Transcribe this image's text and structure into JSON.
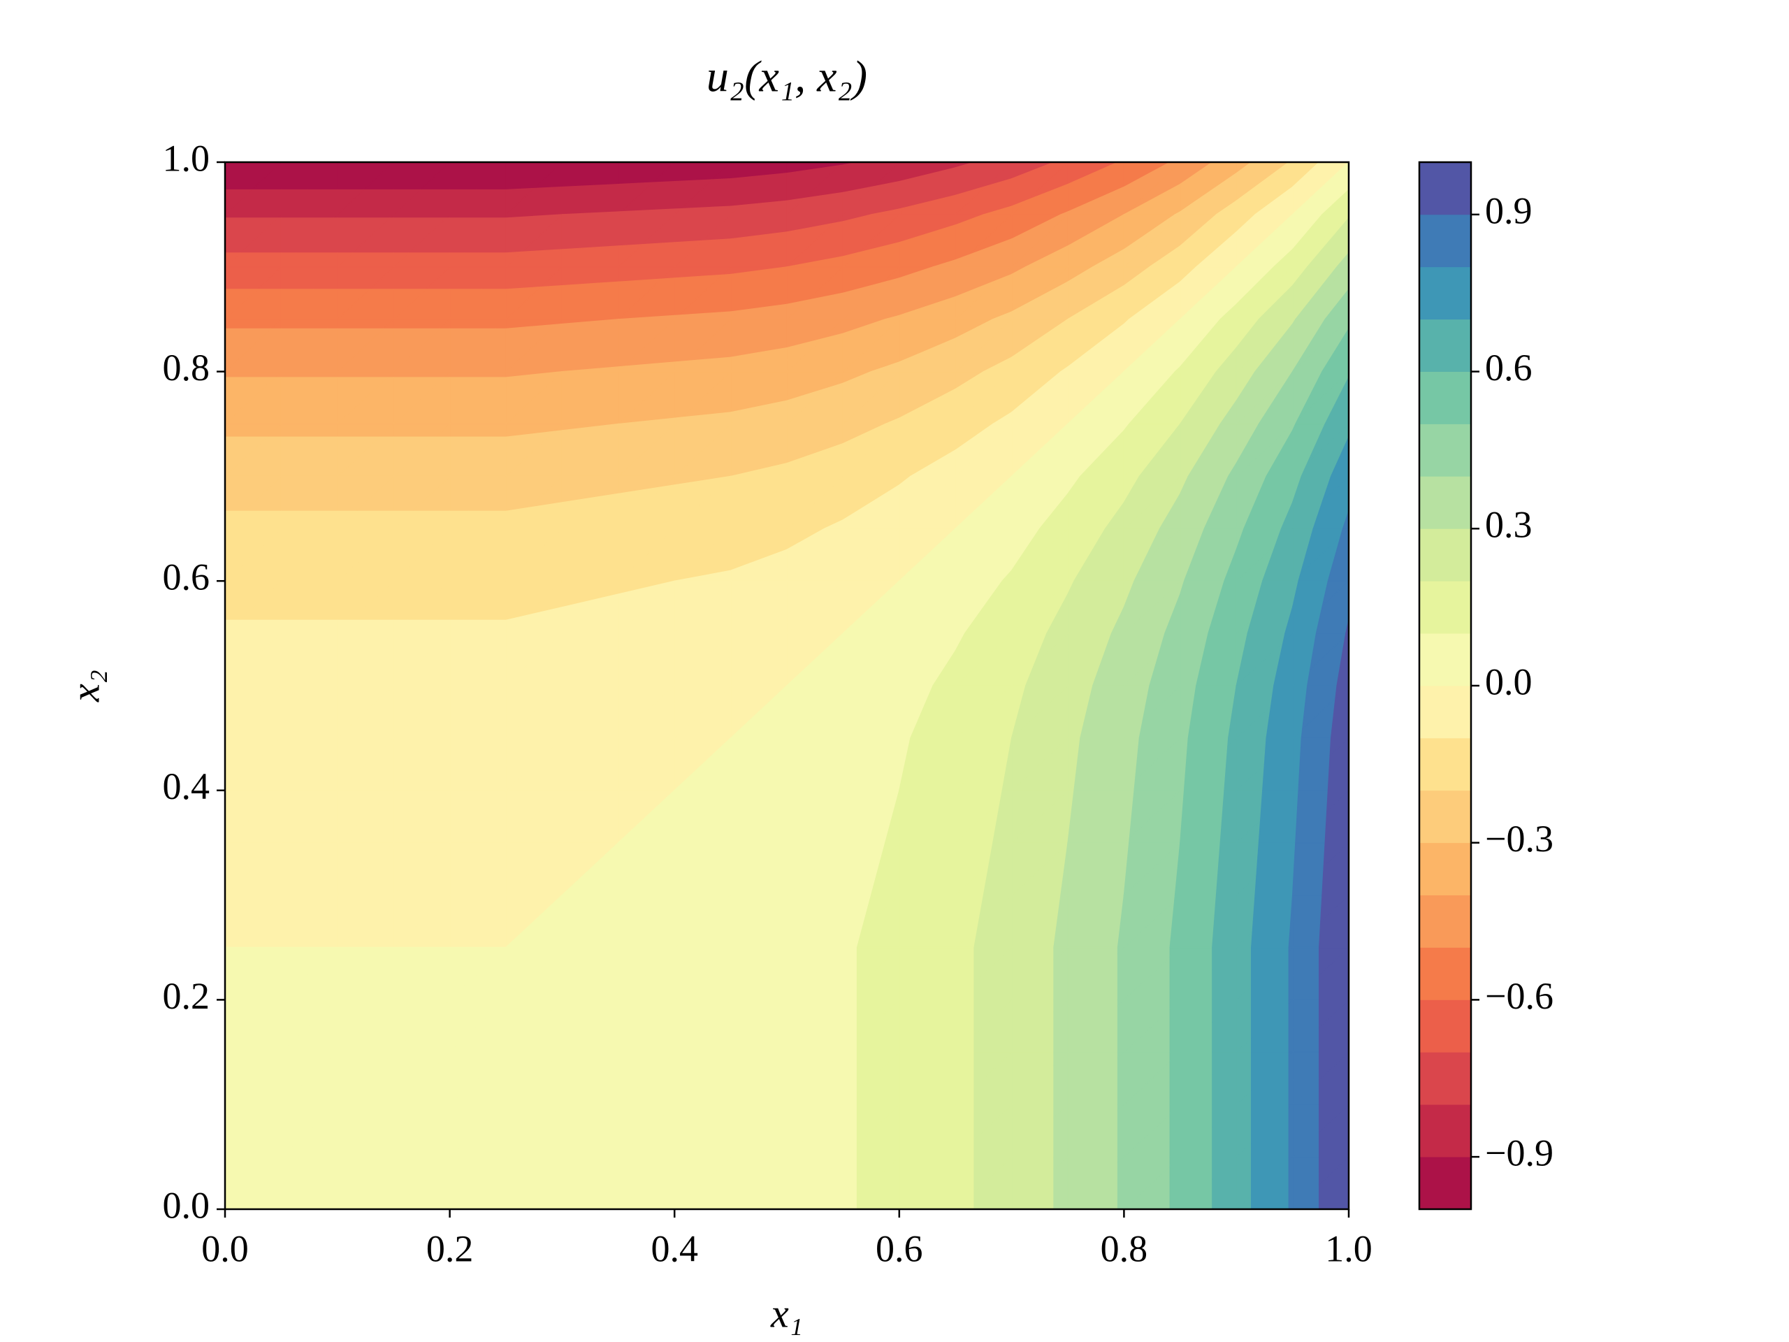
{
  "chart_data": {
    "type": "contourf",
    "title": "u₂(x₁, x₂)",
    "x_label": "x₁",
    "y_label": "x₂",
    "x": [
      0,
      0.05,
      0.1,
      0.15,
      0.2,
      0.25,
      0.3,
      0.35,
      0.4,
      0.45,
      0.5,
      0.55,
      0.6,
      0.65,
      0.7,
      0.75,
      0.8,
      0.85,
      0.9,
      0.95,
      1
    ],
    "y": [
      0,
      0.05,
      0.1,
      0.15,
      0.2,
      0.25,
      0.3,
      0.35,
      0.4,
      0.45,
      0.5,
      0.55,
      0.6,
      0.65,
      0.7,
      0.75,
      0.8,
      0.85,
      0.9,
      0.95,
      1
    ],
    "z": [
      [
        0,
        0,
        0,
        0,
        0,
        0,
        0.01,
        0.02,
        0.03,
        0.04,
        0.06,
        0.09,
        0.13,
        0.18,
        0.24,
        0.32,
        0.41,
        0.52,
        0.66,
        0.81,
        1
      ],
      [
        0,
        0,
        0,
        0,
        0,
        0,
        0.01,
        0.02,
        0.03,
        0.04,
        0.06,
        0.09,
        0.13,
        0.18,
        0.24,
        0.32,
        0.41,
        0.52,
        0.66,
        0.81,
        1
      ],
      [
        0,
        0,
        0,
        0,
        0,
        0,
        0.01,
        0.02,
        0.03,
        0.04,
        0.06,
        0.09,
        0.13,
        0.18,
        0.24,
        0.32,
        0.41,
        0.52,
        0.66,
        0.81,
        1
      ],
      [
        0,
        0,
        0,
        0,
        0,
        0,
        0.01,
        0.02,
        0.03,
        0.04,
        0.06,
        0.09,
        0.13,
        0.18,
        0.24,
        0.32,
        0.41,
        0.52,
        0.66,
        0.81,
        1
      ],
      [
        0,
        0,
        0,
        0,
        0,
        0,
        0.01,
        0.02,
        0.03,
        0.04,
        0.06,
        0.09,
        0.13,
        0.18,
        0.24,
        0.32,
        0.41,
        0.52,
        0.66,
        0.81,
        1
      ],
      [
        0,
        0,
        0,
        0,
        0,
        0,
        0.01,
        0.02,
        0.03,
        0.04,
        0.06,
        0.09,
        0.13,
        0.18,
        0.24,
        0.32,
        0.41,
        0.52,
        0.66,
        0.81,
        1
      ],
      [
        -0.01,
        -0.01,
        -0.01,
        -0.01,
        -0.01,
        -0.01,
        0,
        0.01,
        0.02,
        0.03,
        0.05,
        0.08,
        0.12,
        0.17,
        0.23,
        0.31,
        0.4,
        0.51,
        0.65,
        0.8,
        0.99
      ],
      [
        -0.02,
        -0.02,
        -0.02,
        -0.02,
        -0.02,
        -0.02,
        -0.01,
        0,
        0.01,
        0.02,
        0.04,
        0.07,
        0.11,
        0.16,
        0.22,
        0.3,
        0.39,
        0.5,
        0.64,
        0.79,
        0.98
      ],
      [
        -0.03,
        -0.03,
        -0.03,
        -0.03,
        -0.03,
        -0.03,
        -0.02,
        -0.01,
        0,
        0.01,
        0.03,
        0.06,
        0.1,
        0.15,
        0.21,
        0.29,
        0.38,
        0.49,
        0.63,
        0.78,
        0.97
      ],
      [
        -0.04,
        -0.04,
        -0.04,
        -0.04,
        -0.04,
        -0.04,
        -0.03,
        -0.02,
        -0.01,
        0,
        0.02,
        0.05,
        0.09,
        0.14,
        0.2,
        0.28,
        0.37,
        0.48,
        0.62,
        0.77,
        0.96
      ],
      [
        -0.06,
        -0.06,
        -0.06,
        -0.06,
        -0.06,
        -0.06,
        -0.05,
        -0.04,
        -0.03,
        -0.02,
        0,
        0.03,
        0.07,
        0.12,
        0.18,
        0.26,
        0.35,
        0.46,
        0.6,
        0.75,
        0.94
      ],
      [
        -0.09,
        -0.09,
        -0.09,
        -0.09,
        -0.09,
        -0.09,
        -0.08,
        -0.07,
        -0.06,
        -0.05,
        -0.03,
        0,
        0.04,
        0.09,
        0.15,
        0.23,
        0.32,
        0.43,
        0.57,
        0.72,
        0.91
      ],
      [
        -0.13,
        -0.13,
        -0.13,
        -0.13,
        -0.13,
        -0.13,
        -0.12,
        -0.11,
        -0.1,
        -0.09,
        -0.07,
        -0.04,
        0,
        0.05,
        0.11,
        0.19,
        0.28,
        0.39,
        0.53,
        0.68,
        0.87
      ],
      [
        -0.18,
        -0.18,
        -0.18,
        -0.18,
        -0.18,
        -0.18,
        -0.17,
        -0.16,
        -0.15,
        -0.14,
        -0.12,
        -0.09,
        -0.05,
        0,
        0.06,
        0.14,
        0.23,
        0.34,
        0.48,
        0.63,
        0.82
      ],
      [
        -0.24,
        -0.24,
        -0.24,
        -0.24,
        -0.24,
        -0.24,
        -0.23,
        -0.22,
        -0.21,
        -0.2,
        -0.18,
        -0.15,
        -0.11,
        -0.06,
        0,
        0.08,
        0.17,
        0.28,
        0.42,
        0.57,
        0.76
      ],
      [
        -0.32,
        -0.32,
        -0.32,
        -0.32,
        -0.32,
        -0.32,
        -0.31,
        -0.3,
        -0.29,
        -0.28,
        -0.26,
        -0.23,
        -0.19,
        -0.14,
        -0.08,
        0,
        0.09,
        0.2,
        0.34,
        0.49,
        0.68
      ],
      [
        -0.41,
        -0.41,
        -0.41,
        -0.41,
        -0.41,
        -0.41,
        -0.4,
        -0.39,
        -0.38,
        -0.37,
        -0.35,
        -0.32,
        -0.28,
        -0.23,
        -0.17,
        -0.09,
        0,
        0.11,
        0.25,
        0.4,
        0.59
      ],
      [
        -0.52,
        -0.52,
        -0.52,
        -0.52,
        -0.52,
        -0.52,
        -0.51,
        -0.5,
        -0.49,
        -0.48,
        -0.46,
        -0.43,
        -0.39,
        -0.34,
        -0.28,
        -0.2,
        -0.11,
        0,
        0.14,
        0.29,
        0.48
      ],
      [
        -0.66,
        -0.66,
        -0.66,
        -0.66,
        -0.66,
        -0.66,
        -0.65,
        -0.64,
        -0.63,
        -0.62,
        -0.6,
        -0.57,
        -0.53,
        -0.48,
        -0.42,
        -0.34,
        -0.25,
        -0.14,
        0,
        0.15,
        0.34
      ],
      [
        -0.81,
        -0.81,
        -0.81,
        -0.81,
        -0.81,
        -0.81,
        -0.8,
        -0.79,
        -0.78,
        -0.77,
        -0.75,
        -0.72,
        -0.68,
        -0.63,
        -0.57,
        -0.49,
        -0.4,
        -0.29,
        -0.15,
        0,
        0.19
      ],
      [
        -1,
        -1,
        -1,
        -1,
        -1,
        -1,
        -0.99,
        -0.98,
        -0.97,
        -0.96,
        -0.94,
        -0.91,
        -0.87,
        -0.82,
        -0.76,
        -0.68,
        -0.59,
        -0.48,
        -0.34,
        -0.19,
        0
      ]
    ],
    "levels": [
      -1,
      -0.9,
      -0.8,
      -0.7,
      -0.6,
      -0.5,
      -0.4,
      -0.3,
      -0.2,
      -0.1,
      0,
      0.1,
      0.2,
      0.3,
      0.4,
      0.5,
      0.6,
      0.7,
      0.8,
      0.9,
      1
    ],
    "colors": [
      "#ac1248",
      "#c42a48",
      "#da464c",
      "#ec5f4a",
      "#f57b4a",
      "#f99a59",
      "#fcb567",
      "#fdcc7b",
      "#fee18e",
      "#fef2ab",
      "#f6f9b0",
      "#e6f49d",
      "#d3ec9b",
      "#b7e1a1",
      "#97d5a4",
      "#76c7a5",
      "#58b2ab",
      "#3e97b6",
      "#3f7bb6",
      "#5256a6"
    ],
    "xlim": [
      0,
      1
    ],
    "ylim": [
      0,
      1
    ],
    "xticks": [
      {
        "value": 0,
        "label": "0.0"
      },
      0.2,
      0.4,
      0.6,
      0.8,
      {
        "value": 1,
        "label": "1.0"
      }
    ],
    "yticks": [
      {
        "value": 0,
        "label": "0.0"
      },
      0.2,
      0.4,
      0.6,
      0.8,
      {
        "value": 1,
        "label": "1.0"
      }
    ],
    "colorbar": {
      "lim": [
        -1,
        1
      ],
      "ticks": [
        {
          "value": -0.9,
          "label": "−0.9"
        },
        {
          "value": -0.6,
          "label": "−0.6"
        },
        {
          "value": -0.3,
          "label": "−0.3"
        },
        {
          "value": 0,
          "label": "0.0"
        },
        0.3,
        0.6,
        0.9
      ]
    }
  }
}
